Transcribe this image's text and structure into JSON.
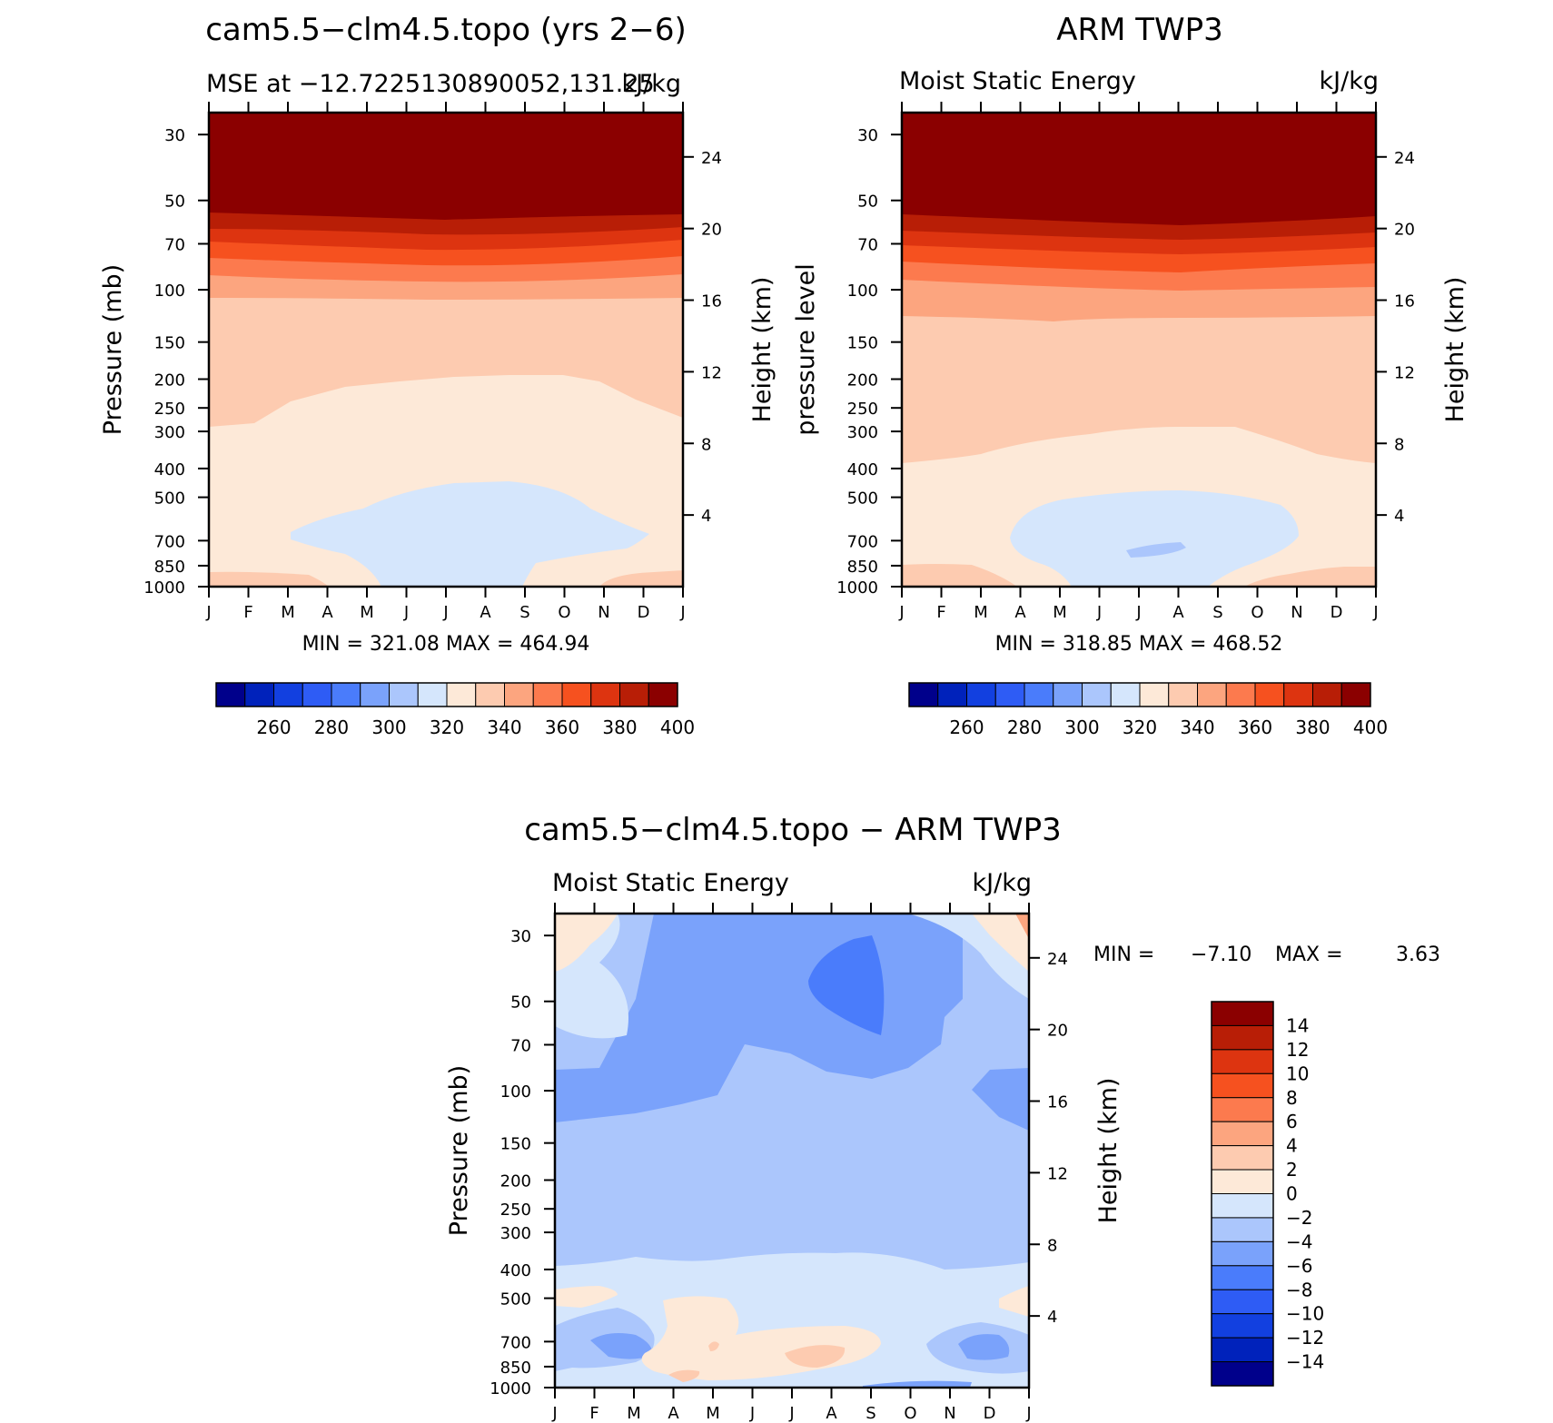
{
  "chart_data": [
    {
      "type": "heatmap",
      "title": "cam5.5−clm4.5.topo (yrs 2−6)",
      "subtitle_left": "MSE at −12.7225130890052,131.25",
      "subtitle_right": "kJ/kg",
      "ylabel": "Pressure (mb)",
      "y2label": "Height (km)",
      "x_ticks": [
        "J",
        "F",
        "M",
        "A",
        "M",
        "J",
        "J",
        "A",
        "S",
        "O",
        "N",
        "D",
        "J"
      ],
      "y_ticks": [
        "30",
        "50",
        "70",
        "100",
        "150",
        "200",
        "250",
        "300",
        "400",
        "500",
        "700",
        "850",
        "1000"
      ],
      "y2_ticks": [
        "24",
        "20",
        "16",
        "12",
        "8",
        "4"
      ],
      "stats": "MIN = 321.08 MAX = 464.94",
      "colorbar_labels": [
        "260",
        "280",
        "300",
        "320",
        "340",
        "360",
        "380",
        "400"
      ],
      "colorbar_levels": [
        250,
        260,
        270,
        280,
        290,
        300,
        310,
        320,
        330,
        340,
        350,
        360,
        370,
        380,
        390,
        400
      ],
      "levels_profile": {
        "pressure_mb": [
          1000,
          850,
          700,
          500,
          400,
          300,
          250,
          200,
          150,
          100,
          70,
          50,
          30
        ],
        "value_class": [
          "330-340",
          "330-340",
          "320-330",
          "320-330",
          "330-340",
          "340-350",
          "340-350",
          "330-340",
          "340-350",
          "350-360",
          "370-380",
          "390-400",
          ">400"
        ]
      }
    },
    {
      "type": "heatmap",
      "title": "ARM TWP3",
      "subtitle_left": "Moist Static Energy",
      "subtitle_right": "kJ/kg",
      "ylabel": "pressure level",
      "y2label": "Height (km)",
      "x_ticks": [
        "J",
        "F",
        "M",
        "A",
        "M",
        "J",
        "J",
        "A",
        "S",
        "O",
        "N",
        "D",
        "J"
      ],
      "y_ticks": [
        "30",
        "50",
        "70",
        "100",
        "150",
        "200",
        "250",
        "300",
        "400",
        "500",
        "700",
        "850",
        "1000"
      ],
      "y2_ticks": [
        "24",
        "20",
        "16",
        "12",
        "8",
        "4"
      ],
      "stats": "MIN = 318.85 MAX = 468.52",
      "colorbar_labels": [
        "260",
        "280",
        "300",
        "320",
        "340",
        "360",
        "380",
        "400"
      ],
      "colorbar_levels": [
        250,
        260,
        270,
        280,
        290,
        300,
        310,
        320,
        330,
        340,
        350,
        360,
        370,
        380,
        390,
        400
      ]
    },
    {
      "type": "heatmap",
      "title": "cam5.5−clm4.5.topo − ARM TWP3",
      "subtitle_left": "Moist Static Energy",
      "subtitle_right": "kJ/kg",
      "ylabel": "Pressure (mb)",
      "y2label": "Height (km)",
      "x_ticks": [
        "J",
        "F",
        "M",
        "A",
        "M",
        "J",
        "J",
        "A",
        "S",
        "O",
        "N",
        "D",
        "J"
      ],
      "y_ticks": [
        "30",
        "50",
        "70",
        "100",
        "150",
        "200",
        "250",
        "300",
        "400",
        "500",
        "700",
        "850",
        "1000"
      ],
      "y2_ticks": [
        "24",
        "20",
        "16",
        "12",
        "8",
        "4"
      ],
      "stats_label_min": "MIN =",
      "stats_min": "−7.10",
      "stats_label_max": "MAX =",
      "stats_max": "3.63",
      "colorbar_labels": [
        "14",
        "12",
        "10",
        "8",
        "6",
        "4",
        "2",
        "0",
        "−2",
        "−4",
        "−6",
        "−8",
        "−10",
        "−12",
        "−14"
      ],
      "colorbar_levels": [
        -14,
        -12,
        -10,
        -8,
        -6,
        -4,
        -2,
        0,
        2,
        4,
        6,
        8,
        10,
        12,
        14
      ]
    }
  ],
  "colors": {
    "mse_palette": [
      "#00008b",
      "#0022bb",
      "#1240e0",
      "#2e5cf5",
      "#4a7cfb",
      "#7aa2fb",
      "#abc6fc",
      "#d5e6fc",
      "#fde9d8",
      "#fdcbb0",
      "#fca57f",
      "#fc7a4e",
      "#f6511f",
      "#dd3410",
      "#b81e06",
      "#8b0000"
    ],
    "diff_palette": [
      "#8b0000",
      "#b81e06",
      "#dd3410",
      "#f6511f",
      "#fc7a4e",
      "#fca57f",
      "#fdcbb0",
      "#fde9d8",
      "#d5e6fc",
      "#abc6fc",
      "#7aa2fb",
      "#4a7cfb",
      "#2e5cf5",
      "#1240e0",
      "#0022bb",
      "#00008b"
    ]
  }
}
